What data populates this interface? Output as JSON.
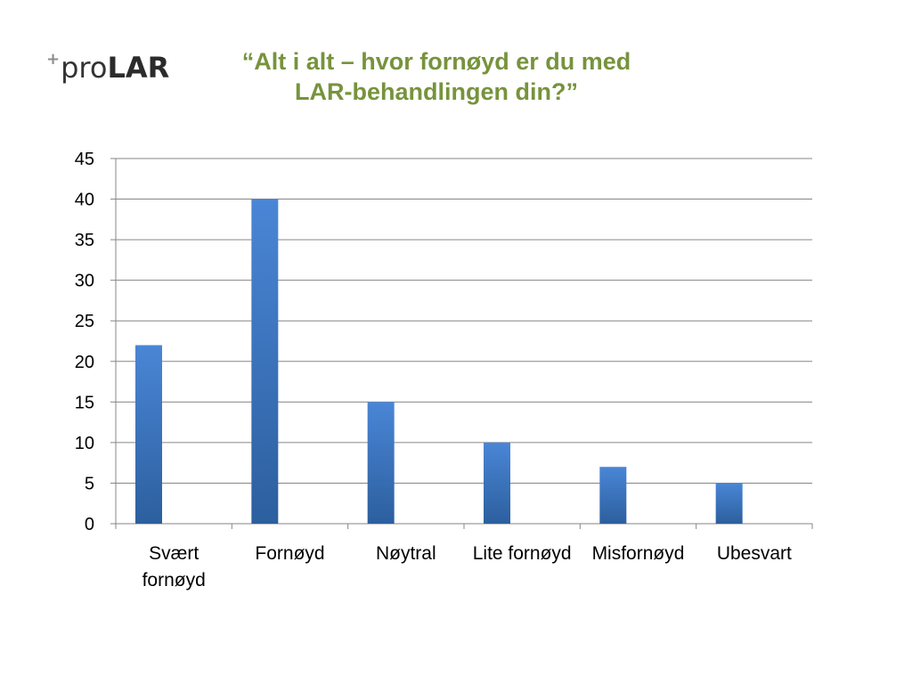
{
  "logo": {
    "plus": "+",
    "pro": "pro",
    "lar": "LAR"
  },
  "title_lines": [
    "“Alt i alt – hvor fornøyd er du med",
    "LAR-behandlingen din?”"
  ],
  "colors": {
    "title": "#77933c",
    "bar_top": "#4a86d6",
    "bar_bottom": "#2c5f9e",
    "grid": "#868686"
  },
  "chart_data": {
    "type": "bar",
    "title": "“Alt i alt – hvor fornøyd er du med LAR-behandlingen din?”",
    "xlabel": "",
    "ylabel": "",
    "categories": [
      [
        "Svært",
        "fornøyd"
      ],
      [
        "Fornøyd"
      ],
      [
        "Nøytral"
      ],
      [
        "Lite fornøyd"
      ],
      [
        "Misfornøyd"
      ],
      [
        "Ubesvart"
      ]
    ],
    "values": [
      22,
      40,
      15,
      10,
      7,
      5
    ],
    "ylim": [
      0,
      45
    ],
    "yticks": [
      0,
      5,
      10,
      15,
      20,
      25,
      30,
      35,
      40,
      45
    ],
    "grid": true,
    "legend": "none"
  }
}
